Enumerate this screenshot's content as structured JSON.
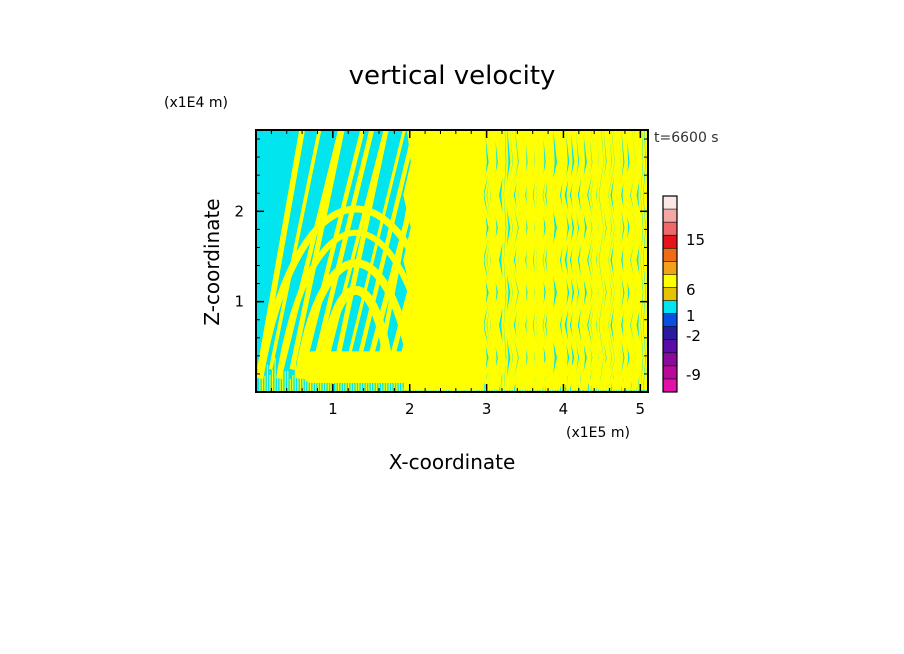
{
  "chart_data": {
    "type": "heatmap",
    "title": "vertical velocity",
    "time_label": "t=6600 s",
    "xlabel": "X-coordinate",
    "ylabel": "Z-coordinate",
    "x_unit": "(x1E5 m)",
    "y_unit": "(x1E4 m)",
    "xlim": [
      0,
      5.1
    ],
    "ylim": [
      0,
      2.9
    ],
    "x_ticks": [
      1,
      2,
      3,
      4,
      5
    ],
    "y_ticks": [
      1,
      2
    ],
    "x_tick_labels": [
      "1",
      "2",
      "3",
      "4",
      "5"
    ],
    "y_tick_labels": [
      "1",
      "2"
    ],
    "dominant_colors": {
      "cyan": "#00e5ee",
      "yellow": "#ffff00"
    },
    "colorbar": {
      "levels": [
        "15",
        "6",
        "1",
        "-2",
        "-9"
      ],
      "colors": [
        "#fbe8e5",
        "#f4a8a6",
        "#ee6a6a",
        "#e8131a",
        "#ef6b14",
        "#f2a21a",
        "#ffff00",
        "#e6c300",
        "#00e5ee",
        "#0a4fe0",
        "#2a1aa0",
        "#5b0ba8",
        "#8a0a9c",
        "#b80a9a",
        "#e010a8"
      ]
    }
  }
}
